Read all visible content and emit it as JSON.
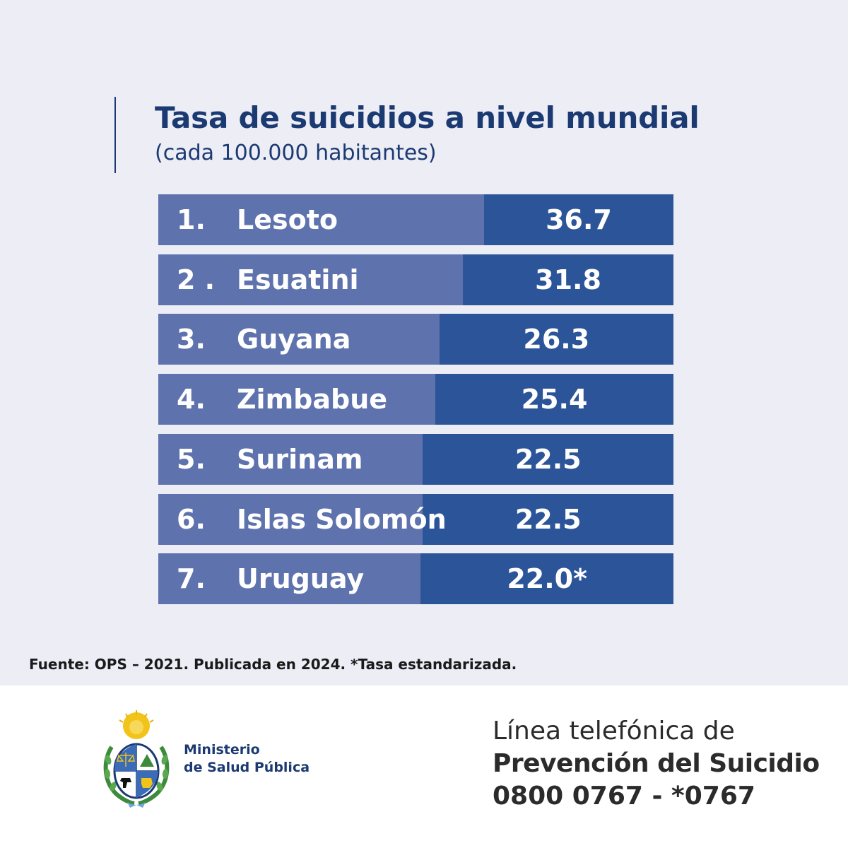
{
  "header": {
    "title": "Tasa de suicidios a nivel mundial",
    "subtitle": "(cada 100.000 habitantes)"
  },
  "chart_data": {
    "type": "bar",
    "title": "Tasa de suicidios a nivel mundial",
    "subtitle": "(cada 100.000 habitantes)",
    "orientation": "horizontal-ranked",
    "rows": [
      {
        "rank": "1.",
        "country": "Lesoto",
        "value": 36.7,
        "label": "36.7"
      },
      {
        "rank": "2 .",
        "country": "Esuatini",
        "value": 31.8,
        "label": "31.8"
      },
      {
        "rank": "3.",
        "country": "Guyana",
        "value": 26.3,
        "label": "26.3"
      },
      {
        "rank": "4.",
        "country": "Zimbabue",
        "value": 25.4,
        "label": "25.4"
      },
      {
        "rank": "5.",
        "country": "Surinam",
        "value": 22.5,
        "label": "22.5"
      },
      {
        "rank": "6.",
        "country": "Islas Solomón",
        "value": 22.5,
        "label": "22.5"
      },
      {
        "rank": "7.",
        "country": "Uruguay",
        "value": 22.0,
        "label": "22.0*"
      }
    ],
    "colors": {
      "row": "#5e72ad",
      "value_cell": "#2c5498"
    }
  },
  "footnote": "Fuente: OPS – 2021. Publicada en 2024. *Tasa estandarizada.",
  "footer": {
    "ministry_line1": "Ministerio",
    "ministry_line2": "de Salud Pública",
    "helpline_line1": "Línea telefónica de",
    "helpline_line2": "Prevención del Suicidio",
    "helpline_line3": "0800 0767 - *0767"
  },
  "colors": {
    "panel_background": "#ecedf5",
    "title": "#1c3a72"
  },
  "icons": {
    "logo": "uruguay-coat-of-arms-icon"
  }
}
